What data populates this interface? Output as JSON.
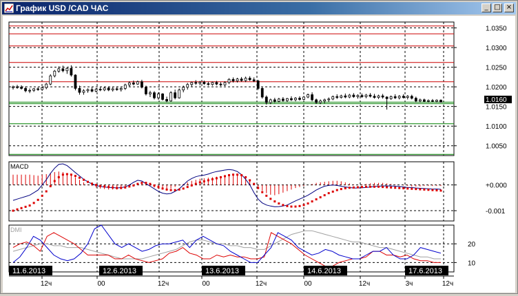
{
  "window": {
    "title": "График USD /CAD  ЧАС",
    "minimize_glyph": "_",
    "maximize_glyph": "□",
    "close_glyph": "×"
  },
  "current_price": "1.0160",
  "colors": {
    "bullish": "#ffffff",
    "bearish": "#000000",
    "resistance": "#cc0000",
    "support": "#008000",
    "macd_line": "#000080",
    "signal": "#dd0000",
    "dmi_plus": "#0000cc",
    "dmi_minus": "#dd0000",
    "adx": "#a0a0a0"
  },
  "chart_data": [
    {
      "type": "candlestick",
      "yticks": [
        "1.0350",
        "1.0300",
        "1.0250",
        "1.0200",
        "1.0150",
        "1.0100",
        "1.0050"
      ],
      "ylim": [
        1.0025,
        1.0365
      ],
      "x_count": 122,
      "resistance_levels": [
        1.0355,
        1.0335,
        1.0304,
        1.0262,
        1.0213
      ],
      "support_levels": [
        1.0161,
        1.0157,
        1.0106,
        1.0028
      ],
      "candles": [
        [
          1.0198,
          1.0203,
          1.0193,
          1.02
        ],
        [
          1.02,
          1.0205,
          1.0195,
          1.0199
        ],
        [
          1.0199,
          1.0204,
          1.0193,
          1.0196
        ],
        [
          1.0196,
          1.0201,
          1.0186,
          1.019
        ],
        [
          1.019,
          1.0196,
          1.0184,
          1.0191
        ],
        [
          1.0191,
          1.0197,
          1.0187,
          1.0195
        ],
        [
          1.0195,
          1.0199,
          1.019,
          1.0193
        ],
        [
          1.0193,
          1.0201,
          1.019,
          1.0198
        ],
        [
          1.0198,
          1.021,
          1.0194,
          1.0207
        ],
        [
          1.0207,
          1.0232,
          1.0204,
          1.0228
        ],
        [
          1.0228,
          1.0243,
          1.0224,
          1.024
        ],
        [
          1.024,
          1.0252,
          1.0236,
          1.0246
        ],
        [
          1.0246,
          1.0254,
          1.0237,
          1.0241
        ],
        [
          1.0241,
          1.025,
          1.0233,
          1.0247
        ],
        [
          1.0247,
          1.0255,
          1.0226,
          1.023
        ],
        [
          1.023,
          1.0232,
          1.0191,
          1.0196
        ],
        [
          1.0196,
          1.0203,
          1.018,
          1.0186
        ],
        [
          1.0186,
          1.0194,
          1.018,
          1.019
        ],
        [
          1.019,
          1.0196,
          1.0185,
          1.0193
        ],
        [
          1.0193,
          1.0199,
          1.0186,
          1.0189
        ],
        [
          1.0189,
          1.0197,
          1.0186,
          1.0194
        ],
        [
          1.0194,
          1.0199,
          1.0189,
          1.0192
        ],
        [
          1.0192,
          1.02,
          1.0189,
          1.0197
        ],
        [
          1.0197,
          1.0201,
          1.0189,
          1.0192
        ],
        [
          1.0192,
          1.0199,
          1.0188,
          1.0195
        ],
        [
          1.0195,
          1.0201,
          1.019,
          1.0193
        ],
        [
          1.0193,
          1.0199,
          1.0188,
          1.0196
        ],
        [
          1.0196,
          1.0208,
          1.0192,
          1.0205
        ],
        [
          1.0205,
          1.0214,
          1.02,
          1.021
        ],
        [
          1.021,
          1.0216,
          1.0204,
          1.0207
        ],
        [
          1.0207,
          1.0216,
          1.0205,
          1.0213
        ],
        [
          1.0213,
          1.0218,
          1.0196,
          1.0199
        ],
        [
          1.0199,
          1.0203,
          1.0178,
          1.0182
        ],
        [
          1.0182,
          1.019,
          1.0174,
          1.0185
        ],
        [
          1.0185,
          1.0189,
          1.0168,
          1.0172
        ],
        [
          1.0172,
          1.0186,
          1.0167,
          1.0182
        ],
        [
          1.0182,
          1.0184,
          1.0165,
          1.0168
        ],
        [
          1.0168,
          1.0175,
          1.016,
          1.0164
        ],
        [
          1.0164,
          1.0189,
          1.0162,
          1.0185
        ],
        [
          1.0185,
          1.0193,
          1.0168,
          1.0172
        ],
        [
          1.0172,
          1.0196,
          1.017,
          1.0192
        ],
        [
          1.0192,
          1.0203,
          1.0186,
          1.0199
        ],
        [
          1.0199,
          1.021,
          1.0193,
          1.0206
        ],
        [
          1.0206,
          1.0213,
          1.0201,
          1.0211
        ],
        [
          1.0211,
          1.0217,
          1.0205,
          1.0209
        ],
        [
          1.0209,
          1.0215,
          1.0204,
          1.0212
        ],
        [
          1.0212,
          1.0216,
          1.0205,
          1.0208
        ],
        [
          1.0208,
          1.0213,
          1.0203,
          1.0206
        ],
        [
          1.0206,
          1.0213,
          1.0203,
          1.0211
        ],
        [
          1.0211,
          1.0215,
          1.0204,
          1.0207
        ],
        [
          1.0207,
          1.0212,
          1.0202,
          1.0205
        ],
        [
          1.0205,
          1.0214,
          1.0202,
          1.0211
        ],
        [
          1.0211,
          1.0222,
          1.0207,
          1.0219
        ],
        [
          1.0219,
          1.0224,
          1.0211,
          1.0215
        ],
        [
          1.0215,
          1.0223,
          1.0211,
          1.022
        ],
        [
          1.022,
          1.0225,
          1.0213,
          1.0216
        ],
        [
          1.0216,
          1.0226,
          1.0212,
          1.0222
        ],
        [
          1.0222,
          1.0227,
          1.0215,
          1.0218
        ],
        [
          1.0218,
          1.0224,
          1.0212,
          1.0215
        ],
        [
          1.0215,
          1.0218,
          1.0192,
          1.0196
        ],
        [
          1.0196,
          1.0199,
          1.017,
          1.0174
        ],
        [
          1.0174,
          1.0178,
          1.0155,
          1.016
        ],
        [
          1.016,
          1.017,
          1.0156,
          1.0167
        ],
        [
          1.0167,
          1.0172,
          1.0159,
          1.0163
        ],
        [
          1.0163,
          1.0172,
          1.016,
          1.0169
        ],
        [
          1.0169,
          1.0174,
          1.0162,
          1.0165
        ],
        [
          1.0165,
          1.0172,
          1.0161,
          1.017
        ],
        [
          1.017,
          1.0176,
          1.0164,
          1.0167
        ],
        [
          1.0167,
          1.0174,
          1.0163,
          1.0171
        ],
        [
          1.0171,
          1.0176,
          1.0165,
          1.0168
        ],
        [
          1.0168,
          1.0177,
          1.0166,
          1.0174
        ],
        [
          1.0174,
          1.0183,
          1.0171,
          1.018
        ],
        [
          1.018,
          1.0186,
          1.0163,
          1.0167
        ],
        [
          1.0167,
          1.017,
          1.0157,
          1.016
        ],
        [
          1.016,
          1.0168,
          1.0156,
          1.0164
        ],
        [
          1.0164,
          1.017,
          1.0158,
          1.0167
        ],
        [
          1.0167,
          1.0173,
          1.0161,
          1.0169
        ],
        [
          1.0169,
          1.0178,
          1.0166,
          1.0175
        ],
        [
          1.0175,
          1.0181,
          1.0169,
          1.0173
        ],
        [
          1.0173,
          1.018,
          1.017,
          1.0177
        ],
        [
          1.0177,
          1.0183,
          1.0171,
          1.0174
        ],
        [
          1.0174,
          1.0182,
          1.0171,
          1.0179
        ],
        [
          1.0179,
          1.0184,
          1.0172,
          1.0175
        ],
        [
          1.0175,
          1.0181,
          1.017,
          1.0178
        ],
        [
          1.0178,
          1.0183,
          1.0172,
          1.0175
        ],
        [
          1.0175,
          1.0182,
          1.0171,
          1.0179
        ],
        [
          1.0179,
          1.0184,
          1.0173,
          1.0176
        ],
        [
          1.0176,
          1.0182,
          1.017,
          1.0173
        ],
        [
          1.0173,
          1.018,
          1.0169,
          1.0177
        ],
        [
          1.0177,
          1.0182,
          1.017,
          1.0174
        ],
        [
          1.0174,
          1.0176,
          1.0142,
          1.017
        ],
        [
          1.017,
          1.0178,
          1.0167,
          1.0175
        ],
        [
          1.0175,
          1.0181,
          1.0169,
          1.0172
        ],
        [
          1.0172,
          1.0179,
          1.0168,
          1.0176
        ],
        [
          1.0176,
          1.0181,
          1.017,
          1.0173
        ],
        [
          1.0173,
          1.0179,
          1.0168,
          1.0176
        ],
        [
          1.0176,
          1.018,
          1.0168,
          1.0171
        ],
        [
          1.0171,
          1.0175,
          1.016,
          1.0164
        ],
        [
          1.0164,
          1.017,
          1.016,
          1.0167
        ],
        [
          1.0167,
          1.017,
          1.0161,
          1.0163
        ],
        [
          1.0163,
          1.0168,
          1.016,
          1.0165
        ],
        [
          1.0165,
          1.0169,
          1.0161,
          1.0163
        ],
        [
          1.0163,
          1.0168,
          1.016,
          1.0166
        ],
        [
          1.0166,
          1.0168,
          1.016,
          1.0161
        ]
      ]
    },
    {
      "type": "bar+line",
      "title": "MACD",
      "yticks": [
        "+0.000",
        "-0.001"
      ],
      "ylim": [
        -0.0014,
        0.0009
      ],
      "x_count": 104,
      "histogram": [
        0.0004,
        0.0004,
        0.0004,
        0.0004,
        0.0004,
        0.00038,
        0.00036,
        0.0004,
        0.00042,
        0.00046,
        0.0005,
        0.00052,
        0.0005,
        0.00046,
        0.0004,
        0.0003,
        0.0002,
        0.0001,
        2e-05,
        -4e-05,
        -0.0001,
        -0.00014,
        -0.00016,
        -0.00018,
        -0.00018,
        -0.00018,
        -0.00016,
        -0.00012,
        -6e-05,
        2e-05,
        8e-05,
        0.0001,
        4e-05,
        -4e-05,
        -0.0001,
        -0.00016,
        -0.00018,
        -0.00018,
        -0.00014,
        -8e-05,
        -2e-05,
        4e-05,
        0.0001,
        0.00016,
        0.0002,
        0.00024,
        0.00026,
        0.00028,
        0.0003,
        0.00032,
        0.00034,
        0.00036,
        0.00038,
        0.0004,
        0.0004,
        0.00038,
        0.0003,
        0.00018,
        4e-05,
        -0.0001,
        -0.00022,
        -0.00032,
        -0.00038,
        -0.0004,
        -0.00036,
        -0.0003,
        -0.00024,
        -0.00018,
        -0.00012,
        -8e-05,
        -4e-05,
        0.0,
        4e-05,
        8e-05,
        0.0001,
        0.00012,
        0.00014,
        0.00016,
        0.00016,
        0.00014,
        0.0001,
        6e-05,
        2e-05,
        0.0,
        2e-05,
        4e-05,
        6e-05,
        8e-05,
        8e-05,
        8e-05,
        6e-05,
        4e-05,
        2e-05,
        0.0,
        -2e-05,
        -4e-05,
        -6e-05,
        -6e-05,
        -6e-05,
        -4e-05,
        -4e-05,
        -4e-05,
        -4e-05,
        -4e-05
      ],
      "macd_line": [
        -0.0006,
        -0.00055,
        -0.0005,
        -0.00045,
        -0.0004,
        -0.0003,
        -0.0002,
        0.0,
        0.0002,
        0.00045,
        0.00065,
        0.0008,
        0.00082,
        0.00075,
        0.00062,
        0.00048,
        0.00035,
        0.00022,
        0.00012,
        4e-05,
        -2e-05,
        -6e-05,
        -8e-05,
        -0.0001,
        -0.0001,
        -0.00012,
        -0.0001,
        -8e-05,
        0.0,
        0.0001,
        0.00018,
        0.00015,
        5e-05,
        -5e-05,
        -0.00015,
        -0.00025,
        -0.00032,
        -0.00035,
        -0.00033,
        -0.00025,
        -0.00015,
        0.0,
        0.00015,
        0.00025,
        0.00032,
        0.00036,
        0.00038,
        0.00042,
        0.00048,
        0.00052,
        0.00055,
        0.00058,
        0.0006,
        0.00058,
        0.00052,
        0.0004,
        0.00022,
        0.0,
        -0.0003,
        -0.00055,
        -0.0007,
        -0.00078,
        -0.00082,
        -0.00085,
        -0.00084,
        -0.00082,
        -0.00078,
        -0.0007,
        -0.00062,
        -0.00055,
        -0.00048,
        -0.0004,
        -0.0003,
        -0.0002,
        -0.00012,
        -5e-05,
        -2e-05,
        0.0,
        -2e-05,
        -5e-05,
        -8e-05,
        -0.0001,
        -0.00012,
        -0.00012,
        -0.00011,
        -0.0001,
        -8e-05,
        -6e-05,
        -5e-05,
        -4e-05,
        -4e-05,
        -4e-05,
        -5e-05,
        -6e-05,
        -8e-05,
        -0.0001,
        -0.0001,
        -0.00012,
        -0.00013,
        -0.00014,
        -0.00015,
        -0.00016,
        -0.00016,
        -0.00017
      ],
      "signal_line": [
        -0.001,
        -0.00095,
        -0.0009,
        -0.00085,
        -0.0008,
        -0.0007,
        -0.00058,
        -0.00042,
        -0.00025,
        -5e-05,
        0.00015,
        0.0003,
        0.0004,
        0.00042,
        0.0004,
        0.00035,
        0.00028,
        0.0002,
        0.00012,
        5e-05,
        0.0,
        -4e-05,
        -6e-05,
        -8e-05,
        -0.0001,
        -0.00012,
        -0.00012,
        -0.0001,
        -6e-05,
        -2e-05,
        4e-05,
        8e-05,
        8e-05,
        4e-05,
        -2e-05,
        -8e-05,
        -0.00014,
        -0.00018,
        -0.0002,
        -0.0002,
        -0.00018,
        -0.00014,
        -8e-05,
        -2e-05,
        4e-05,
        0.0001,
        0.00014,
        0.00018,
        0.00022,
        0.00026,
        0.0003,
        0.00034,
        0.00038,
        0.0004,
        0.0004,
        0.00038,
        0.0003,
        0.00018,
        4e-05,
        -0.00012,
        -0.00028,
        -0.00042,
        -0.00054,
        -0.00064,
        -0.00072,
        -0.00078,
        -0.00082,
        -0.00084,
        -0.00084,
        -0.00082,
        -0.00078,
        -0.00072,
        -0.00064,
        -0.00056,
        -0.00048,
        -0.0004,
        -0.00032,
        -0.00026,
        -0.0002,
        -0.00016,
        -0.00013,
        -0.00011,
        -0.0001,
        -9e-05,
        -8e-05,
        -7e-05,
        -7e-05,
        -7e-05,
        -7e-05,
        -8e-05,
        -9e-05,
        -0.0001,
        -0.00011,
        -0.00012,
        -0.00013,
        -0.00014,
        -0.00015,
        -0.00016,
        -0.00017,
        -0.00018,
        -0.00019,
        -0.0002,
        -0.00021,
        -0.00022
      ]
    },
    {
      "type": "line",
      "title": "DMI",
      "yticks": [
        "20",
        "10"
      ],
      "ylim": [
        5,
        30
      ],
      "x_count": 64,
      "plus_di": [
        10,
        13,
        18,
        24,
        22,
        18,
        14,
        12,
        11,
        12,
        15,
        20,
        28,
        30,
        25,
        20,
        18,
        20,
        18,
        16,
        17,
        19,
        20,
        20,
        21,
        22,
        18,
        22,
        24,
        22,
        20,
        19,
        16,
        14,
        12,
        10,
        10,
        14,
        18,
        26,
        24,
        22,
        18,
        16,
        14,
        15,
        17,
        16,
        14,
        13,
        12,
        12,
        14,
        16,
        16,
        18,
        14,
        12,
        12,
        14,
        18,
        17,
        16,
        15
      ],
      "minus_di": [
        18,
        20,
        21,
        19,
        16,
        24,
        26,
        24,
        22,
        20,
        17,
        14,
        14,
        14,
        14,
        12,
        12,
        14,
        12,
        11,
        10,
        11,
        12,
        15,
        16,
        18,
        15,
        14,
        12,
        12,
        14,
        13,
        14,
        13,
        13,
        12,
        12,
        13,
        26,
        24,
        22,
        20,
        17,
        14,
        12,
        10,
        8,
        8,
        10,
        11,
        12,
        12,
        13,
        16,
        16,
        14,
        14,
        13,
        14,
        12,
        11,
        11,
        10,
        10
      ],
      "adx": [
        16,
        17,
        18,
        19,
        20,
        20,
        19,
        19,
        18,
        18,
        18,
        17,
        16,
        15,
        14,
        13,
        12,
        12,
        12,
        12,
        13,
        14,
        15,
        16,
        17,
        19,
        21,
        22,
        22,
        21,
        20,
        20,
        19,
        19,
        18,
        18,
        17,
        17,
        19,
        21,
        23,
        25,
        26,
        27,
        27,
        26,
        25,
        24,
        23,
        22,
        21,
        21,
        20,
        19,
        18,
        18,
        17,
        16,
        15,
        14,
        13,
        13,
        12,
        12
      ]
    }
  ],
  "x_axis": {
    "date_labels": [
      "11.6.2013",
      "12.6.2013",
      "13.6.2013",
      "14.6.2013",
      "17.6.2013"
    ],
    "bottom_ticks": [
      "12ч",
      "00",
      "12ч",
      "00",
      "12ч",
      "00",
      "12ч",
      "3ч",
      "12ч"
    ]
  }
}
